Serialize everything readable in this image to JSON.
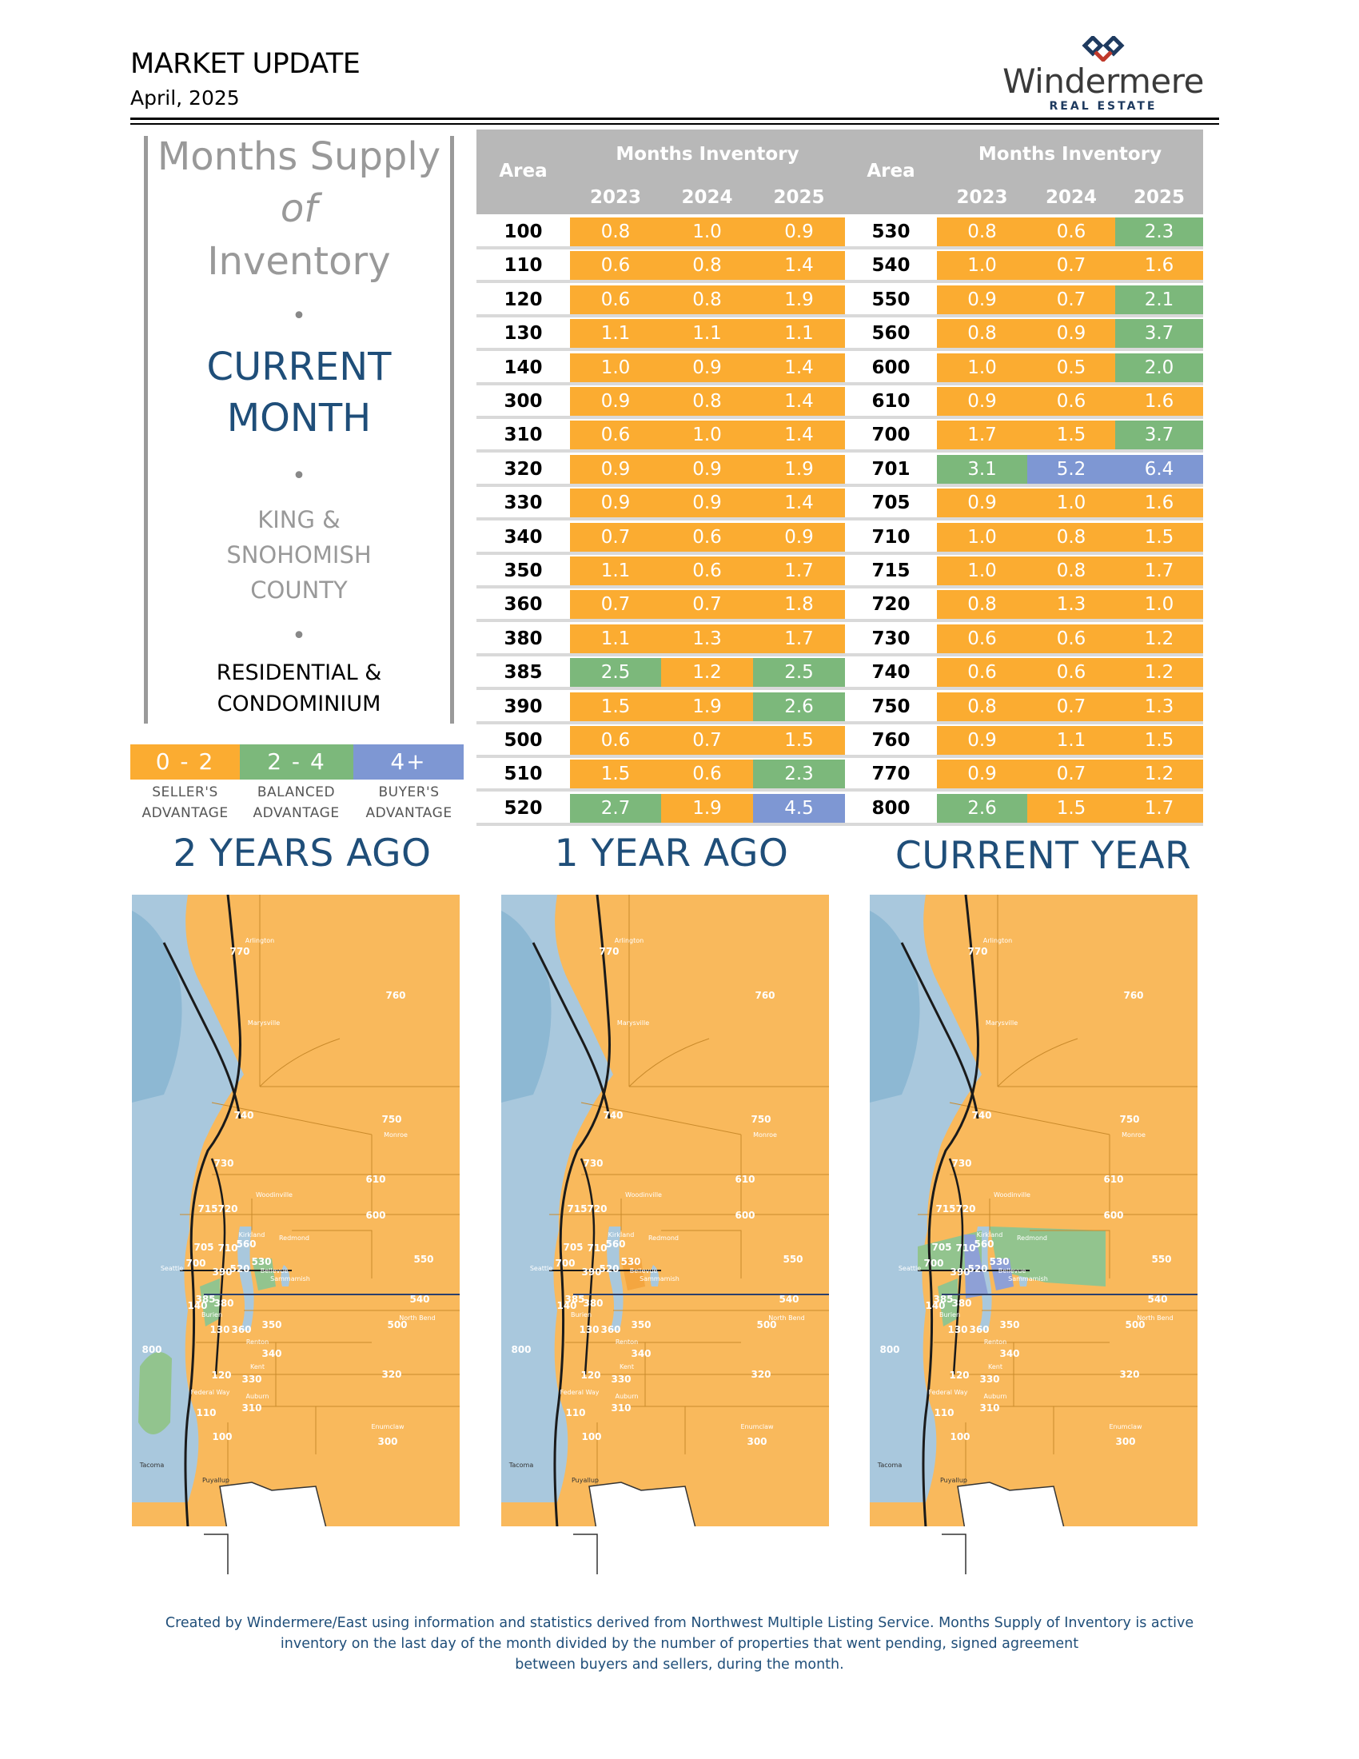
{
  "header": {
    "title": "MARKET UPDATE",
    "date": "April, 2025",
    "logo_word": "Windermere",
    "logo_sub": "REAL ESTATE"
  },
  "left_panel": {
    "line1": "Months Supply",
    "line2": "of",
    "line3": "Inventory",
    "bullet": "•",
    "current1": "CURRENT",
    "current2": "MONTH",
    "county1": "KING &",
    "county2": "SNOHOMISH",
    "county3": "COUNTY",
    "res1": "RESIDENTIAL &",
    "res2": "CONDOMINIUM"
  },
  "legend": {
    "items": [
      {
        "range": "0 - 2",
        "label1": "SELLER'S",
        "label2": "ADVANTAGE",
        "color": "#fbac31"
      },
      {
        "range": "2 - 4",
        "label1": "BALANCED",
        "label2": "ADVANTAGE",
        "color": "#7cb87b"
      },
      {
        "range": "4+",
        "label1": "BUYER'S",
        "label2": "ADVANTAGE",
        "color": "#7e97d3"
      }
    ]
  },
  "table": {
    "area_label": "Area",
    "group_label": "Months Inventory",
    "years": [
      "2023",
      "2024",
      "2025"
    ],
    "left": [
      {
        "area": "100",
        "v": [
          "0.8",
          "1.0",
          "0.9"
        ]
      },
      {
        "area": "110",
        "v": [
          "0.6",
          "0.8",
          "1.4"
        ]
      },
      {
        "area": "120",
        "v": [
          "0.6",
          "0.8",
          "1.9"
        ]
      },
      {
        "area": "130",
        "v": [
          "1.1",
          "1.1",
          "1.1"
        ]
      },
      {
        "area": "140",
        "v": [
          "1.0",
          "0.9",
          "1.4"
        ]
      },
      {
        "area": "300",
        "v": [
          "0.9",
          "0.8",
          "1.4"
        ]
      },
      {
        "area": "310",
        "v": [
          "0.6",
          "1.0",
          "1.4"
        ]
      },
      {
        "area": "320",
        "v": [
          "0.9",
          "0.9",
          "1.9"
        ]
      },
      {
        "area": "330",
        "v": [
          "0.9",
          "0.9",
          "1.4"
        ]
      },
      {
        "area": "340",
        "v": [
          "0.7",
          "0.6",
          "0.9"
        ]
      },
      {
        "area": "350",
        "v": [
          "1.1",
          "0.6",
          "1.7"
        ]
      },
      {
        "area": "360",
        "v": [
          "0.7",
          "0.7",
          "1.8"
        ]
      },
      {
        "area": "380",
        "v": [
          "1.1",
          "1.3",
          "1.7"
        ]
      },
      {
        "area": "385",
        "v": [
          "2.5",
          "1.2",
          "2.5"
        ]
      },
      {
        "area": "390",
        "v": [
          "1.5",
          "1.9",
          "2.6"
        ]
      },
      {
        "area": "500",
        "v": [
          "0.6",
          "0.7",
          "1.5"
        ]
      },
      {
        "area": "510",
        "v": [
          "1.5",
          "0.6",
          "2.3"
        ]
      },
      {
        "area": "520",
        "v": [
          "2.7",
          "1.9",
          "4.5"
        ]
      }
    ],
    "right": [
      {
        "area": "530",
        "v": [
          "0.8",
          "0.6",
          "2.3"
        ]
      },
      {
        "area": "540",
        "v": [
          "1.0",
          "0.7",
          "1.6"
        ]
      },
      {
        "area": "550",
        "v": [
          "0.9",
          "0.7",
          "2.1"
        ]
      },
      {
        "area": "560",
        "v": [
          "0.8",
          "0.9",
          "3.7"
        ]
      },
      {
        "area": "600",
        "v": [
          "1.0",
          "0.5",
          "2.0"
        ]
      },
      {
        "area": "610",
        "v": [
          "0.9",
          "0.6",
          "1.6"
        ]
      },
      {
        "area": "700",
        "v": [
          "1.7",
          "1.5",
          "3.7"
        ]
      },
      {
        "area": "701",
        "v": [
          "3.1",
          "5.2",
          "6.4"
        ]
      },
      {
        "area": "705",
        "v": [
          "0.9",
          "1.0",
          "1.6"
        ]
      },
      {
        "area": "710",
        "v": [
          "1.0",
          "0.8",
          "1.5"
        ]
      },
      {
        "area": "715",
        "v": [
          "1.0",
          "0.8",
          "1.7"
        ]
      },
      {
        "area": "720",
        "v": [
          "0.8",
          "1.3",
          "1.0"
        ]
      },
      {
        "area": "730",
        "v": [
          "0.6",
          "0.6",
          "1.2"
        ]
      },
      {
        "area": "740",
        "v": [
          "0.6",
          "0.6",
          "1.2"
        ]
      },
      {
        "area": "750",
        "v": [
          "0.8",
          "0.7",
          "1.3"
        ]
      },
      {
        "area": "760",
        "v": [
          "0.9",
          "1.1",
          "1.5"
        ]
      },
      {
        "area": "770",
        "v": [
          "0.9",
          "0.7",
          "1.2"
        ]
      },
      {
        "area": "800",
        "v": [
          "2.6",
          "1.5",
          "1.7"
        ]
      }
    ]
  },
  "sections": {
    "two_years": "2 YEARS AGO",
    "one_year": "1 YEAR AGO",
    "current": "CURRENT YEAR"
  },
  "map": {
    "labels": [
      "770",
      "760",
      "740",
      "750",
      "730",
      "610",
      "715",
      "720",
      "600",
      "705",
      "710",
      "560",
      "530",
      "550",
      "700",
      "390",
      "520",
      "385",
      "380",
      "140",
      "540",
      "130",
      "360",
      "350",
      "500",
      "340",
      "800",
      "120",
      "330",
      "320",
      "110",
      "310",
      "100",
      "300"
    ],
    "places": [
      "Arlington",
      "Marysville",
      "Monroe",
      "Woodinville",
      "Kirkland",
      "Redmond",
      "Bellevue",
      "Sammamish",
      "Seattle",
      "Burien",
      "Renton",
      "Kent",
      "North Bend",
      "Auburn",
      "Federal Way",
      "Enumclaw",
      "Tacoma",
      "Puyallup"
    ],
    "colors": {
      "seller": "#f9b95c",
      "balanced": "#92c48e",
      "buyer": "#8ea0d6",
      "water": "#a9c8dd",
      "road": "#1a1a1a"
    }
  },
  "footer": {
    "line1": "Created by Windermere/East using information and statistics derived from Northwest Multiple Listing Service. Months Supply of Inventory is active",
    "line2": "inventory on the last day of the month divided by the number of properties that went pending, signed agreement",
    "line3": "between buyers and sellers, during the month."
  }
}
